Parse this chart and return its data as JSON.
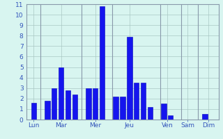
{
  "bars": [
    {
      "x": 1,
      "height": 1.6
    },
    {
      "x": 3,
      "height": 1.8
    },
    {
      "x": 4,
      "height": 3.0
    },
    {
      "x": 5,
      "height": 5.0
    },
    {
      "x": 6,
      "height": 2.8
    },
    {
      "x": 7,
      "height": 2.4
    },
    {
      "x": 9,
      "height": 3.0
    },
    {
      "x": 10,
      "height": 3.0
    },
    {
      "x": 11,
      "height": 10.8
    },
    {
      "x": 13,
      "height": 2.2
    },
    {
      "x": 14,
      "height": 2.2
    },
    {
      "x": 15,
      "height": 7.9
    },
    {
      "x": 16,
      "height": 3.5
    },
    {
      "x": 17,
      "height": 3.5
    },
    {
      "x": 18,
      "height": 1.2
    },
    {
      "x": 20,
      "height": 1.5
    },
    {
      "x": 21,
      "height": 0.4
    },
    {
      "x": 26,
      "height": 0.5
    }
  ],
  "bar_color": "#1515ee",
  "bar_edge_color": "#0000bb",
  "background_color": "#d8f5f0",
  "grid_color": "#aac8c4",
  "tick_label_color": "#3355bb",
  "axis_line_color": "#8899aa",
  "xlim": [
    0,
    28
  ],
  "ylim": [
    0,
    11
  ],
  "yticks": [
    0,
    1,
    2,
    3,
    4,
    5,
    6,
    7,
    8,
    9,
    10,
    11
  ],
  "day_labels": [
    "Lun",
    "Mar",
    "Mer",
    "Jeu",
    "Ven",
    "Sam",
    "Dim"
  ],
  "day_tick_positions": [
    1.0,
    5.0,
    10.0,
    15.0,
    20.5,
    23.5,
    26.5
  ],
  "day_sep_positions": [
    2.0,
    8.0,
    12.5,
    19.5,
    22.5,
    25.0
  ],
  "bar_width": 0.75
}
